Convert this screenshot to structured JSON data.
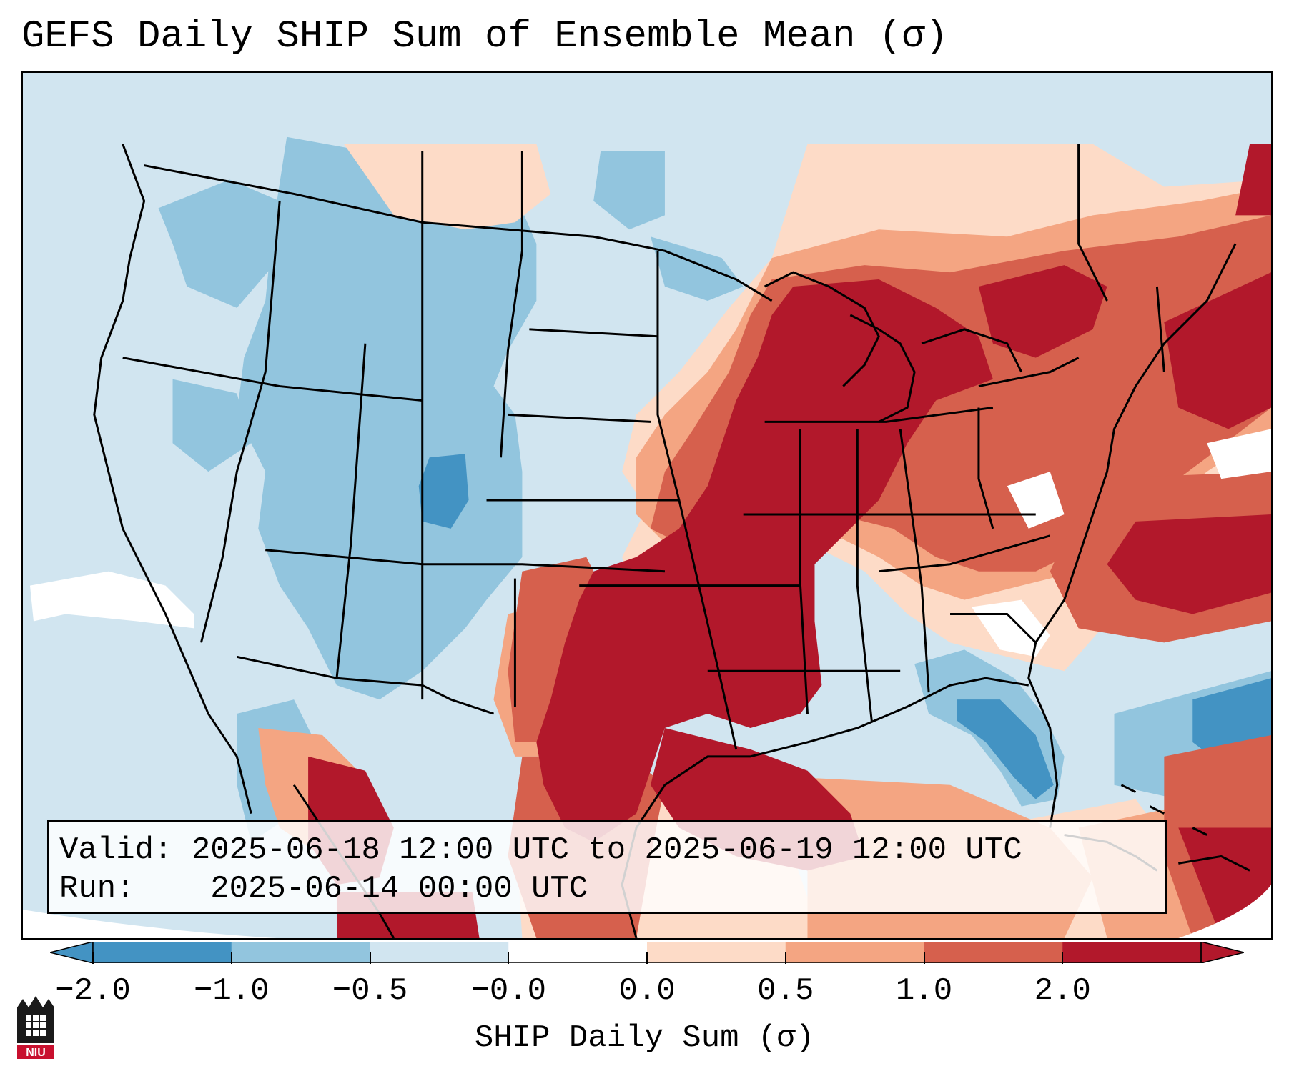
{
  "title": "GEFS Daily SHIP Sum of Ensemble Mean (σ)",
  "info_box": {
    "valid_label": "Valid:",
    "valid_value": "2025-06-18 12:00 UTC to 2025-06-19 12:00 UTC",
    "run_label": "Run:",
    "run_value": "2025-06-14 00:00 UTC"
  },
  "colorbar": {
    "label": "SHIP Daily Sum (σ)",
    "ticks": [
      "−2.0",
      "−1.0",
      "−0.5",
      "−0.0",
      "0.0",
      "0.5",
      "1.0",
      "2.0"
    ],
    "colors": [
      "#4393c3",
      "#92c5de",
      "#d1e5f0",
      "#ffffff",
      "#fddbc7",
      "#f4a582",
      "#d6604d",
      "#b2182b"
    ],
    "extend": "both"
  },
  "logo": {
    "text": "NIU",
    "description": "niu-castle-logo"
  },
  "map": {
    "region": "Continental United States",
    "background_color": "#d1e5f0",
    "highlights": [
      "strong positive anomaly over southern plains, mississippi valley and great lakes",
      "positive anomaly along atlantic coast and offshore",
      "negative anomaly over interior west and florida"
    ]
  }
}
